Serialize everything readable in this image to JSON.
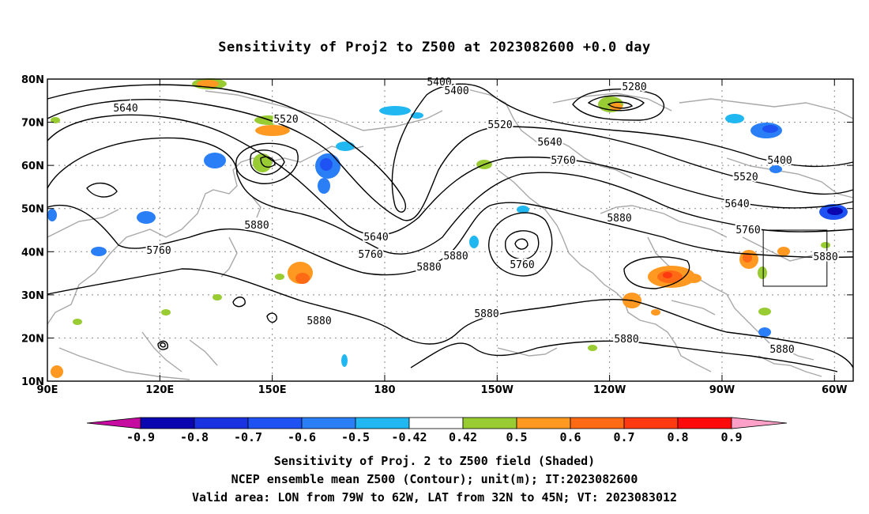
{
  "title": "Sensitivity of Proj2 to Z500 at 2023082600 +0.0 day",
  "axes": {
    "lon_labels": [
      "90E",
      "120E",
      "150E",
      "180",
      "150W",
      "120W",
      "90W",
      "60W"
    ],
    "lat_labels": [
      "10N",
      "20N",
      "30N",
      "40N",
      "50N",
      "60N",
      "70N",
      "80N"
    ],
    "lon_range": [
      90,
      305
    ],
    "lat_range": [
      10,
      80
    ]
  },
  "contour_labels": [
    {
      "text": "5400"
    },
    {
      "text": "5400"
    },
    {
      "text": "5280"
    },
    {
      "text": "5520"
    },
    {
      "text": "5520"
    },
    {
      "text": "5640"
    },
    {
      "text": "5640"
    },
    {
      "text": "5640"
    },
    {
      "text": "5760"
    },
    {
      "text": "5760"
    },
    {
      "text": "5760"
    },
    {
      "text": "5760"
    },
    {
      "text": "5880"
    },
    {
      "text": "5880"
    },
    {
      "text": "5880"
    },
    {
      "text": "5880"
    },
    {
      "text": "5880"
    },
    {
      "text": "5880"
    },
    {
      "text": "5880"
    },
    {
      "text": "5880"
    },
    {
      "text": "5640"
    },
    {
      "text": "5400"
    },
    {
      "text": "5520"
    },
    {
      "text": "5760"
    },
    {
      "text": "5880"
    }
  ],
  "colorbar": {
    "labels": [
      "-0.9",
      "-0.8",
      "-0.7",
      "-0.6",
      "-0.5",
      "-0.42",
      "0.42",
      "0.5",
      "0.6",
      "0.7",
      "0.8",
      "0.9"
    ],
    "colors": [
      "#c60ba0",
      "#0a06b0",
      "#1a33e0",
      "#1e52f2",
      "#2a7ef6",
      "#21b8f2",
      "#ffffff",
      "#99cc33",
      "#ff9922",
      "#ff6a14",
      "#ff3a10",
      "#ff0a0a",
      "#ffa0c8"
    ]
  },
  "footer": {
    "line1": "Sensitivity of Proj. 2 to Z500 field (Shaded)",
    "line2": "NCEP ensemble mean Z500 (Contour); unit(m); IT:2023082600",
    "line3": "Valid area: LON from 79W to 62W, LAT from 32N to 45N; VT: 2023083012"
  },
  "valid_area": {
    "lon": [
      -79,
      -62
    ],
    "lat": [
      32,
      45
    ]
  }
}
